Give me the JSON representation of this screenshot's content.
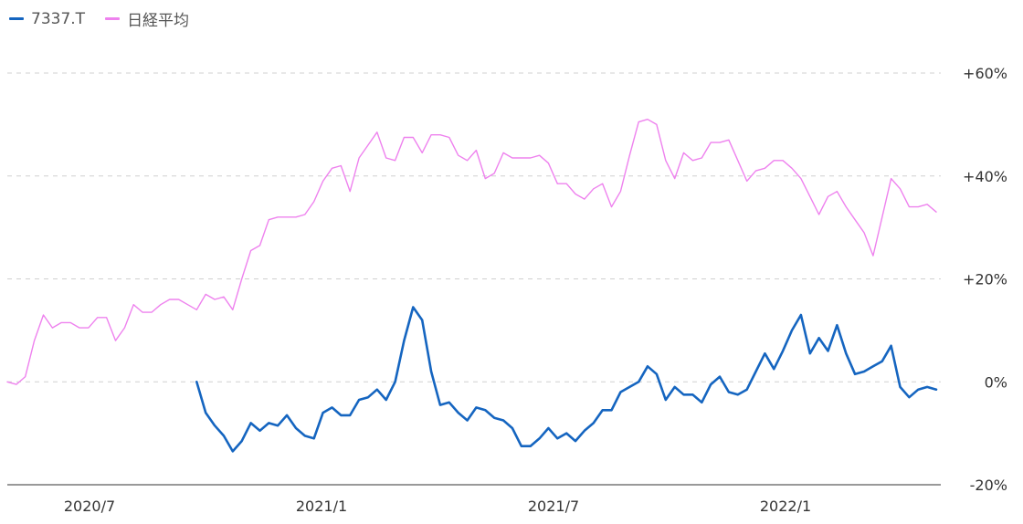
{
  "chart_data": {
    "type": "line",
    "title": "",
    "xlabel": "",
    "ylabel": "",
    "ylim": [
      -20,
      60
    ],
    "y_ticks": [
      "+60%",
      "+40%",
      "+20%",
      "0%",
      "-20%"
    ],
    "y_tick_values": [
      60,
      40,
      20,
      0,
      -20
    ],
    "x_ticks": [
      "2020/7",
      "2021/1",
      "2021/7",
      "2022/1"
    ],
    "grid": "horizontal-dashed",
    "legend_position": "top-left",
    "series": [
      {
        "name": "7337.T",
        "color": "#1565c0",
        "start_index": 21,
        "values": [
          0,
          -6,
          -8.5,
          -10.5,
          -13.5,
          -11.5,
          -8,
          -9.5,
          -8,
          -8.5,
          -6.5,
          -9,
          -10.5,
          -11,
          -6,
          -5,
          -6.5,
          -6.5,
          -3.5,
          -3,
          -1.5,
          -3.5,
          0,
          8,
          14.5,
          12,
          2,
          -4.5,
          -4,
          -6,
          -7.5,
          -5,
          -5.5,
          -7,
          -7.5,
          -9,
          -12.5,
          -12.5,
          -11,
          -9,
          -11,
          -10,
          -11.5,
          -9.5,
          -8,
          -5.5,
          -5.5,
          -2,
          -1,
          0,
          3,
          1.5,
          -3.5,
          -1,
          -2.5,
          -2.5,
          -4,
          -0.5,
          1,
          -2,
          -2.5,
          -1.5,
          2,
          5.5,
          2.5,
          6,
          10,
          13,
          5.5,
          8.5,
          6,
          11,
          5.5,
          1.5,
          2,
          3,
          4,
          7,
          -1,
          -3,
          -1.5,
          -1,
          -1.5
        ]
      },
      {
        "name": "日経平均",
        "color": "#ee82ee",
        "start_index": 0,
        "values": [
          0,
          -0.5,
          1,
          8,
          13,
          10.5,
          11.5,
          11.5,
          10.5,
          10.5,
          12.5,
          12.5,
          8,
          10.5,
          15,
          13.5,
          13.5,
          15,
          16,
          16,
          15,
          14,
          17,
          16,
          16.5,
          14,
          20,
          25.5,
          26.5,
          31.5,
          32,
          32,
          32,
          32.5,
          35,
          39,
          41.5,
          42,
          37,
          43.5,
          46,
          48.5,
          43.5,
          43,
          47.5,
          47.5,
          44.5,
          48,
          48,
          47.5,
          44,
          43,
          45,
          39.5,
          40.5,
          44.5,
          43.5,
          43.5,
          43.5,
          44,
          42.5,
          38.5,
          38.5,
          36.5,
          35.5,
          37.5,
          38.5,
          34,
          37,
          44,
          50.5,
          51,
          50,
          43,
          39.5,
          44.5,
          43,
          43.5,
          46.5,
          46.5,
          47,
          43,
          39,
          41,
          41.5,
          43,
          43,
          41.5,
          39.5,
          36,
          32.5,
          36,
          37,
          34,
          31.5,
          29,
          24.5,
          32,
          39.5,
          37.5,
          34,
          34,
          34.5,
          33
        ]
      }
    ]
  }
}
